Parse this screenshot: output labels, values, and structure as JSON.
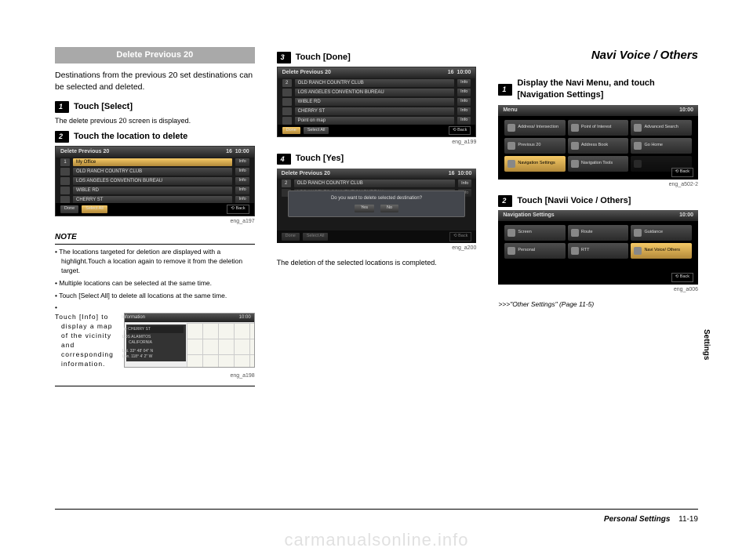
{
  "col1": {
    "section_title": "Delete Previous 20",
    "intro": "Destinations from the previous 20 set destinations can be selected and deleted.",
    "step1_num": "1",
    "step1_label": "Touch [Select]",
    "step1_sub": "The delete previous 20 screen is displayed.",
    "step2_num": "2",
    "step2_label": "Touch the location to delete",
    "shot_title": "Delete Previous 20",
    "shot_time": "10:00",
    "shot_count": "16",
    "rows": [
      {
        "idx": "1",
        "label": "My Office",
        "info": "Info",
        "hl": true
      },
      {
        "idx": "",
        "label": "OLD RANCH COUNTRY CLUB",
        "info": "Info"
      },
      {
        "idx": "",
        "label": "LOS ANGELES CONVENTION BUREAU",
        "info": "Info"
      },
      {
        "idx": "",
        "label": "WIBLE RD",
        "info": "Info"
      },
      {
        "idx": "",
        "label": "CHERRY ST",
        "info": "Info"
      }
    ],
    "btn_done": "Done",
    "btn_selall": "Select All",
    "btn_back": "Back",
    "cap1": "eng_a197",
    "note_hdr": "NOTE",
    "notes": [
      "The locations targeted for deletion are displayed with a highlight.Touch a location again to remove it from the deletion target.",
      "Multiple locations can be selected at the same time.",
      "Touch [Select All] to delete all locations at the same time."
    ],
    "note4_txt": "Touch [Info] to display a map of the vicinity and corresponding information.",
    "map_title": "Information",
    "map_time": "10:00",
    "map_item": "CHERRY ST",
    "map_loc": "LOS ALAMITOS\nCALIFORNIA",
    "map_lat": "Lat. 33° 48' 04'' N",
    "map_lon": "Lon. 118° 4' 2'' W",
    "cap2": "eng_a198"
  },
  "col2": {
    "step3_num": "3",
    "step3_label": "Touch [Done]",
    "shot_title": "Delete Previous 20",
    "shot_time": "10:00",
    "shot_count": "16",
    "rows": [
      {
        "idx": "2",
        "label": "OLD RANCH COUNTRY CLUB",
        "info": "Info"
      },
      {
        "idx": "",
        "label": "LOS ANGELES CONVENTION BUREAU",
        "info": "Info"
      },
      {
        "idx": "",
        "label": "WIBLE RD",
        "info": "Info"
      },
      {
        "idx": "",
        "label": "CHERRY ST",
        "info": "Info"
      },
      {
        "idx": "",
        "label": "Point on map",
        "info": "Info"
      }
    ],
    "btn_done": "Done",
    "btn_selall": "Select All",
    "btn_back": "Back",
    "cap1": "eng_a199",
    "step4_num": "4",
    "step4_label": "Touch [Yes]",
    "dlg_q": "Do you want to delete selected destination?",
    "dlg_yes": "Yes",
    "dlg_no": "No",
    "dlg_point": "Point on map",
    "cap2": "eng_a200",
    "result": "The deletion of the selected locations is completed."
  },
  "col3": {
    "title": "Navi Voice / Others",
    "step1_num": "1",
    "step1_label": "Display the Navi Menu, and touch [Navigation Settings]",
    "menu_title": "Menu",
    "menu_time": "10:00",
    "tiles": [
      "Address/ Intersection",
      "Point of Interest",
      "Advanced Search",
      "Previous 20",
      "Address Book",
      "Go Home",
      "Navigation Settings",
      "Navigation Tools",
      ""
    ],
    "menu_back": "Back",
    "cap1": "eng_a502-2",
    "step2_num": "2",
    "step2_label": "Touch [Navii Voice / Others]",
    "nav_title": "Navigation Settings",
    "nav_time": "10:00",
    "nav_tiles": [
      "Screen",
      "Route",
      "Guidance",
      "Personal",
      "RTT",
      "Navi Voice/ Others"
    ],
    "nav_back": "Back",
    "cap2": "eng_a006",
    "crossref": ">>>\"Other Settings\" (Page 11-5)"
  },
  "side_tab": "Settings",
  "footer_section": "Personal Settings",
  "footer_page": "11-19",
  "watermark": "carmanualsonline.info"
}
